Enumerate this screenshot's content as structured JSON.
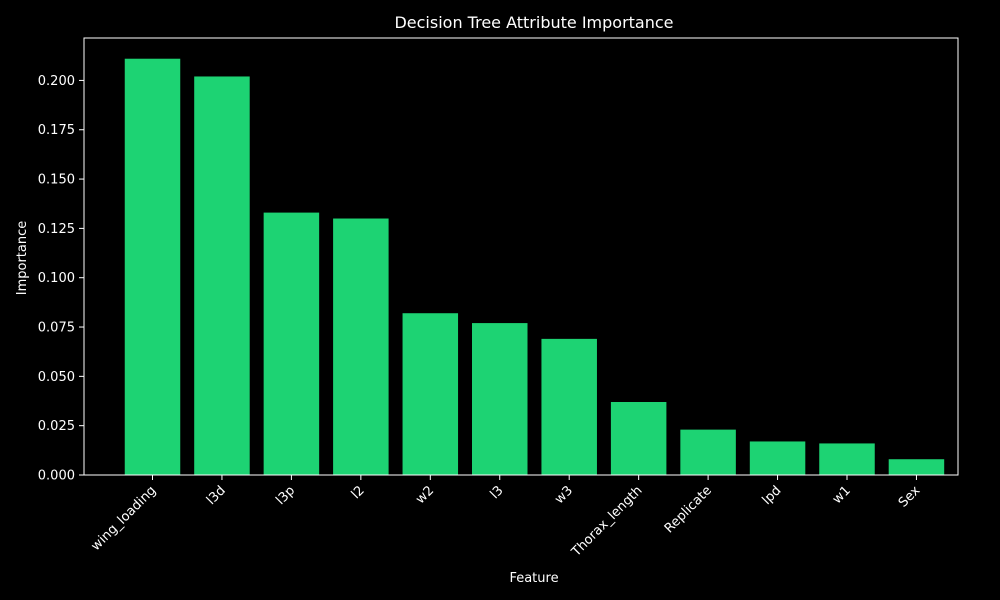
{
  "chart_data": {
    "type": "bar",
    "title": "Decision Tree Attribute Importance",
    "xlabel": "Feature",
    "ylabel": "Importance",
    "categories": [
      "wing_loading",
      "l3d",
      "l3p",
      "l2",
      "w2",
      "l3",
      "w3",
      "Thorax_length",
      "Replicate",
      "lpd",
      "w1",
      "Sex"
    ],
    "values": [
      0.211,
      0.202,
      0.133,
      0.13,
      0.082,
      0.077,
      0.069,
      0.037,
      0.023,
      0.017,
      0.016,
      0.008
    ],
    "ylim": [
      0,
      0.2215
    ],
    "yticks": [
      0.0,
      0.025,
      0.05,
      0.075,
      0.1,
      0.125,
      0.15,
      0.175,
      0.2
    ],
    "ytick_labels": [
      "0.000",
      "0.025",
      "0.050",
      "0.075",
      "0.100",
      "0.125",
      "0.150",
      "0.175",
      "0.200"
    ],
    "grid": false,
    "colors": {
      "background": "#000000",
      "bar": "#1dd373",
      "axis": "#ffffff",
      "text": "#ffffff"
    }
  }
}
